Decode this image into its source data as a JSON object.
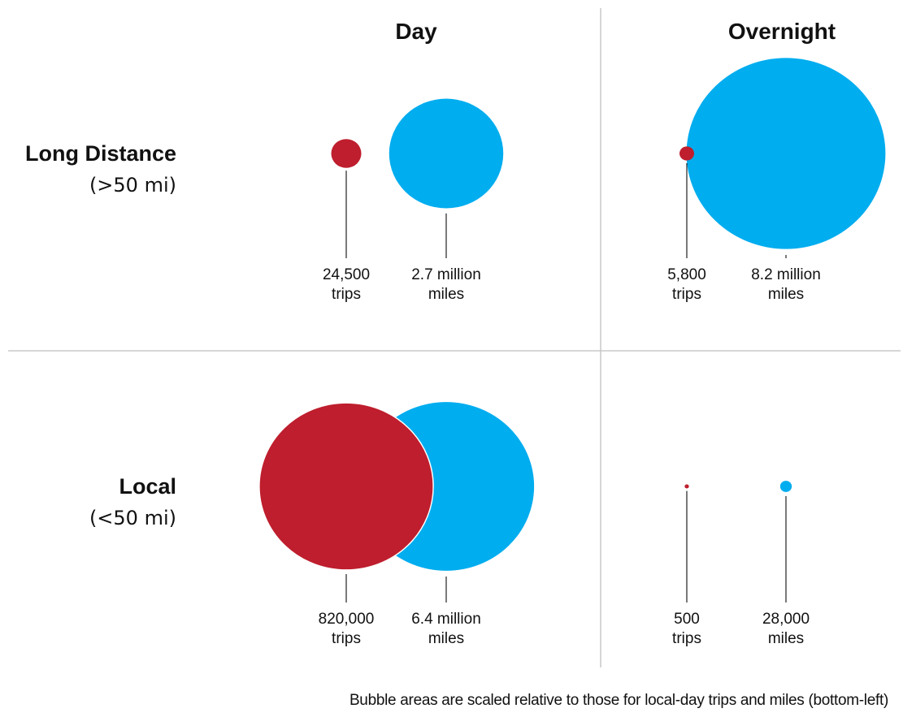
{
  "chart_data": {
    "type": "bubble-grid",
    "columns": [
      "Day",
      "Overnight"
    ],
    "rows": [
      {
        "title": "Long Distance",
        "subtitle": "(>50 mi)"
      },
      {
        "title": "Local",
        "subtitle": "(<50 mi)"
      }
    ],
    "series": [
      {
        "key": "trips",
        "color": "#be1e2d"
      },
      {
        "key": "miles",
        "color": "#00adef"
      }
    ],
    "cells": [
      {
        "row": 0,
        "col": 0,
        "trips": 24500,
        "trips_label": "24,500",
        "trips_unit": "trips",
        "miles": 2700000,
        "miles_label": "2.7 million",
        "miles_unit": "miles"
      },
      {
        "row": 0,
        "col": 1,
        "trips": 5800,
        "trips_label": "5,800",
        "trips_unit": "trips",
        "miles": 8200000,
        "miles_label": "8.2 million",
        "miles_unit": "miles"
      },
      {
        "row": 1,
        "col": 0,
        "trips": 820000,
        "trips_label": "820,000",
        "trips_unit": "trips",
        "miles": 6400000,
        "miles_label": "6.4 million",
        "miles_unit": "miles"
      },
      {
        "row": 1,
        "col": 1,
        "trips": 500,
        "trips_label": "500",
        "trips_unit": "trips",
        "miles": 28000,
        "miles_label": "28,000",
        "miles_unit": "miles"
      }
    ],
    "scale_reference": "local-day",
    "footnote": "Bubble areas are scaled relative to those for local-day trips and miles (bottom-left)"
  }
}
